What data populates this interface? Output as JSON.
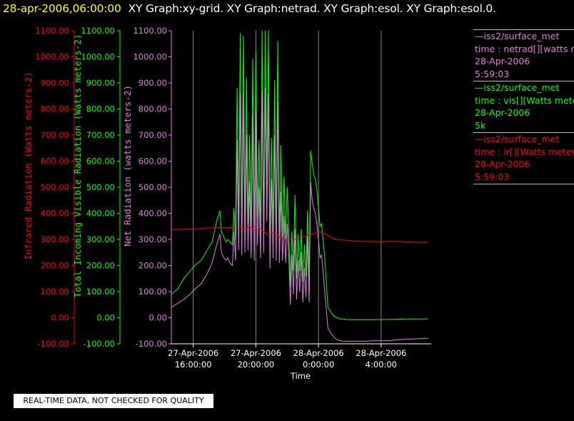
{
  "header": {
    "timestamp": "28-apr-2006,06:00:00",
    "graphs": "XY Graph:xy-grid.  XY Graph:netrad.  XY Graph:esol.  XY Graph:esol.0."
  },
  "colors": {
    "ir": "#ff0000",
    "vis": "#00ff00",
    "net": "#e07ee0",
    "grid": "#888888",
    "axis_x": "#ffffff"
  },
  "legend": [
    {
      "source": "—iss2/surface_met",
      "desc": "time : netrad[][watts meters-2]",
      "date": "28-Apr-2006",
      "extra": "5:59:03",
      "color": "#e07ee0"
    },
    {
      "source": "—iss2/surface_met",
      "desc": "time : vis[][Watts meters-2]",
      "date": "28-Apr-2006",
      "extra": "5k",
      "color": "#00ff00"
    },
    {
      "source": "—iss2/surface_met",
      "desc": "time : ir[][Watts meters-2]",
      "date": "28-Apr-2006",
      "extra": "5:59:03",
      "color": "#ff0000"
    }
  ],
  "note": "REAL-TIME DATA, NOT CHECKED FOR QUALITY",
  "chart_data": {
    "type": "line",
    "title": "",
    "xlabel": "Time",
    "x_ticks": [
      {
        "hour": 16,
        "line1": "27-Apr-2006",
        "line2": "16:00:00"
      },
      {
        "hour": 20,
        "line1": "27-Apr-2006",
        "line2": "20:00:00"
      },
      {
        "hour": 24,
        "line1": "28-Apr-2006",
        "line2": "0:00:00"
      },
      {
        "hour": 28,
        "line1": "28-Apr-2006",
        "line2": "4:00:00"
      }
    ],
    "xlim": [
      14.6,
      31.2
    ],
    "ylim": [
      -100,
      1100
    ],
    "y_ticks": [
      -100,
      0,
      100,
      200,
      300,
      400,
      500,
      600,
      700,
      800,
      900,
      1000,
      1100
    ],
    "y_axes": [
      {
        "label": "Infrared Radiation (Watts meters-2)",
        "color": "#ff0000",
        "tick_labels": [
          "-100.00",
          "0.00",
          "100.00",
          "200.00",
          "300.00",
          "400.00",
          "500.00",
          "600.00",
          "700.00",
          "800.00",
          "900.00",
          "1000.00",
          "1100.00"
        ]
      },
      {
        "label": "Total Incoming Visible Radiation (Watts meters-2)",
        "color": "#00ff00",
        "tick_labels": [
          "-100.00",
          "0.00",
          "100.00",
          "200.00",
          "300.00",
          "400.00",
          "500.00",
          "600.00",
          "700.00",
          "800.00",
          "900.00",
          "1000.00",
          "1100.00"
        ]
      },
      {
        "label": "Net Radiation (watts meters-2)",
        "color": "#e07ee0",
        "tick_labels": [
          "-100.00",
          "0.00",
          "100.00",
          "200.00",
          "300.00",
          "400.00",
          "500.00",
          "600.00",
          "700.00",
          "800.00",
          "900.00",
          "1000.00",
          "1100.00"
        ]
      }
    ],
    "grid": true,
    "series": [
      {
        "key": "vis",
        "color": "#00ff00",
        "x": [
          14.6,
          15.0,
          15.4,
          15.8,
          16.1,
          16.5,
          16.9,
          17.2,
          17.5,
          17.7,
          17.8,
          17.95,
          18.1,
          18.2,
          18.35,
          18.5,
          18.6,
          18.7,
          18.8,
          18.9,
          19.0,
          19.1,
          19.2,
          19.3,
          19.4,
          19.5,
          19.6,
          19.7,
          19.8,
          19.9,
          20.0,
          20.1,
          20.2,
          20.3,
          20.4,
          20.5,
          20.6,
          20.7,
          20.8,
          20.9,
          21.0,
          21.1,
          21.2,
          21.3,
          21.4,
          21.5,
          21.6,
          21.7,
          21.8,
          21.9,
          22.0,
          22.1,
          22.2,
          22.3,
          22.4,
          22.5,
          22.6,
          22.7,
          22.8,
          22.9,
          23.0,
          23.1,
          23.2,
          23.3,
          23.4,
          23.5,
          23.6,
          23.7,
          23.8,
          23.9,
          24.0,
          24.1,
          24.2,
          24.4,
          24.6,
          24.8,
          25.0,
          25.2,
          25.4,
          25.5,
          25.6,
          25.8,
          26.0,
          26.5,
          27.0,
          27.5,
          28.0,
          28.5,
          29.0,
          29.5,
          30.0,
          30.5,
          31.0
        ],
        "y": [
          90,
          110,
          150,
          180,
          200,
          220,
          260,
          290,
          370,
          410,
          330,
          310,
          290,
          300,
          290,
          280,
          420,
          300,
          880,
          360,
          1090,
          330,
          1080,
          340,
          920,
          360,
          700,
          320,
          990,
          310,
          1020,
          380,
          680,
          320,
          1100,
          350,
          1100,
          500,
          1100,
          280,
          690,
          330,
          910,
          310,
          1060,
          300,
          660,
          310,
          540,
          300,
          500,
          330,
          120,
          330,
          180,
          470,
          150,
          320,
          180,
          340,
          140,
          280,
          160,
          410,
          150,
          640,
          590,
          550,
          530,
          490,
          420,
          350,
          360,
          230,
          40,
          20,
          5,
          0,
          -5,
          -5,
          -5,
          -7,
          -8,
          -8,
          -8,
          -8,
          -7,
          -6,
          -6,
          -5,
          -5,
          -5,
          -5
        ]
      },
      {
        "key": "net",
        "color": "#e07ee0",
        "x": [
          14.6,
          15.0,
          15.4,
          15.8,
          16.1,
          16.5,
          16.9,
          17.2,
          17.5,
          17.7,
          17.8,
          17.95,
          18.1,
          18.2,
          18.35,
          18.5,
          18.6,
          18.7,
          18.8,
          18.9,
          19.0,
          19.1,
          19.2,
          19.3,
          19.4,
          19.5,
          19.6,
          19.7,
          19.8,
          19.9,
          20.0,
          20.1,
          20.2,
          20.3,
          20.4,
          20.5,
          20.6,
          20.7,
          20.8,
          20.9,
          21.0,
          21.1,
          21.2,
          21.3,
          21.4,
          21.5,
          21.6,
          21.7,
          21.8,
          21.9,
          22.0,
          22.1,
          22.2,
          22.3,
          22.4,
          22.5,
          22.6,
          22.7,
          22.8,
          22.9,
          23.0,
          23.1,
          23.2,
          23.3,
          23.4,
          23.5,
          23.6,
          23.7,
          23.8,
          23.9,
          24.0,
          24.1,
          24.2,
          24.4,
          24.6,
          24.8,
          25.0,
          25.2,
          25.4,
          25.5,
          25.6,
          25.8,
          26.0,
          26.5,
          27.0,
          27.5,
          28.0,
          28.5,
          29.0,
          29.5,
          30.0,
          30.5,
          31.0
        ],
        "y": [
          40,
          55,
          70,
          90,
          110,
          130,
          170,
          210,
          280,
          320,
          250,
          230,
          220,
          230,
          210,
          200,
          330,
          220,
          680,
          260,
          860,
          240,
          860,
          250,
          700,
          260,
          520,
          230,
          780,
          220,
          800,
          280,
          500,
          230,
          870,
          250,
          880,
          370,
          860,
          190,
          530,
          230,
          700,
          220,
          830,
          210,
          480,
          220,
          390,
          210,
          360,
          240,
          50,
          240,
          90,
          340,
          70,
          220,
          100,
          250,
          60,
          190,
          80,
          310,
          60,
          520,
          450,
          420,
          400,
          360,
          300,
          230,
          240,
          100,
          -40,
          -60,
          -75,
          -85,
          -88,
          -90,
          -90,
          -90,
          -90,
          -90,
          -90,
          -88,
          -88,
          -88,
          -85,
          -83,
          -82,
          -80,
          -79
        ]
      },
      {
        "key": "ir",
        "color": "#ff0000",
        "x": [
          14.6,
          15.0,
          15.5,
          16.0,
          16.5,
          17.0,
          17.5,
          18.0,
          18.5,
          19.0,
          19.3,
          19.6,
          19.9,
          20.2,
          20.5,
          20.8,
          21.1,
          21.4,
          21.7,
          22.0,
          22.3,
          22.6,
          22.9,
          23.2,
          23.5,
          23.8,
          24.1,
          24.4,
          24.7,
          25.0,
          25.5,
          26.0,
          26.5,
          27.0,
          27.5,
          28.0,
          28.5,
          29.0,
          29.5,
          30.0,
          30.5,
          31.0
        ],
        "y": [
          337,
          338,
          340,
          340,
          342,
          344,
          345,
          346,
          345,
          348,
          338,
          350,
          335,
          342,
          330,
          318,
          325,
          315,
          305,
          296,
          305,
          300,
          310,
          312,
          318,
          325,
          330,
          322,
          312,
          302,
          298,
          296,
          293,
          292,
          292,
          291,
          293,
          292,
          291,
          290,
          289,
          288
        ]
      }
    ]
  }
}
